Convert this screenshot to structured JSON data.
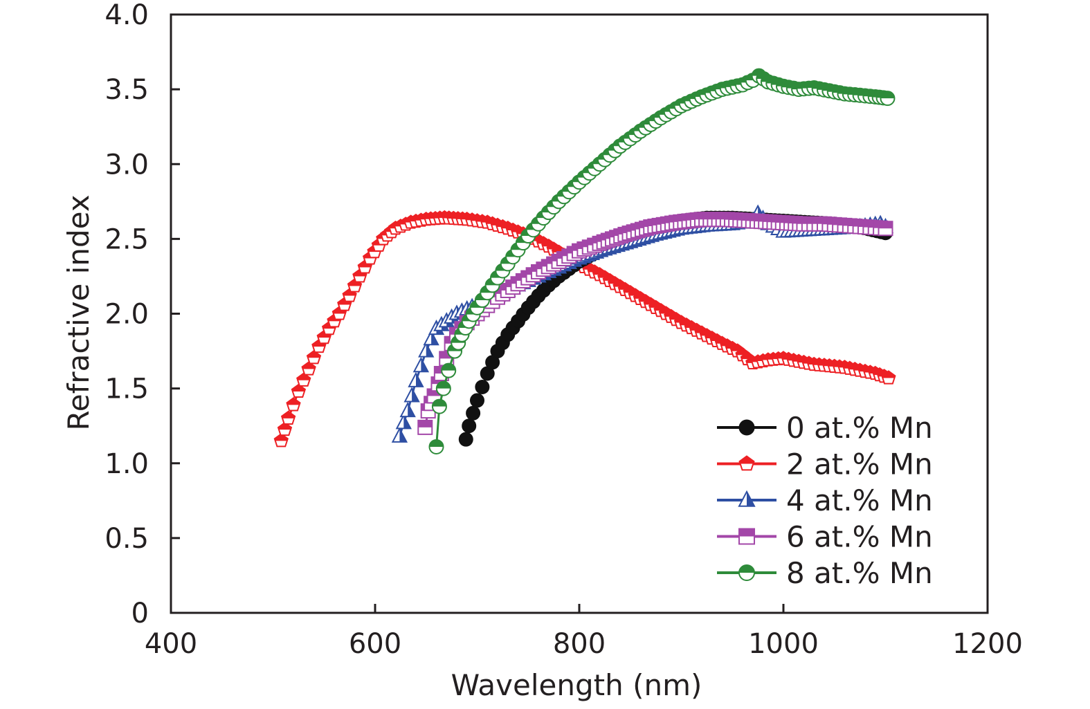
{
  "chart_data": {
    "type": "scatter",
    "title": "",
    "xlabel": "Wavelength (nm)",
    "ylabel": "Refractive index",
    "xlim": [
      400,
      1200
    ],
    "ylim": [
      0,
      4.0
    ],
    "xticks": [
      400,
      600,
      800,
      1000,
      1200
    ],
    "xtick_labels": [
      "400",
      "600",
      "800",
      "1000",
      "1200"
    ],
    "yticks": [
      0,
      0.5,
      1.0,
      1.5,
      2.0,
      2.5,
      3.0,
      3.5,
      4.0
    ],
    "ytick_labels": [
      "0",
      "0.5",
      "1.0",
      "1.5",
      "2.0",
      "2.5",
      "3.0",
      "3.5",
      "4.0"
    ],
    "grid": false,
    "legend_position": "bottom-right",
    "series": [
      {
        "name": "0 at.% Mn",
        "color": "#111111",
        "marker": "circle-filled",
        "x": [
          689,
          692,
          700,
          710,
          720,
          730,
          740,
          750,
          760,
          770,
          780,
          790,
          800,
          825,
          850,
          875,
          900,
          925,
          950,
          975,
          1000,
          1025,
          1050,
          1075,
          1100
        ],
        "y": [
          1.16,
          1.25,
          1.42,
          1.6,
          1.75,
          1.86,
          1.95,
          2.04,
          2.12,
          2.19,
          2.25,
          2.3,
          2.35,
          2.44,
          2.52,
          2.58,
          2.62,
          2.64,
          2.64,
          2.63,
          2.62,
          2.61,
          2.6,
          2.58,
          2.54
        ]
      },
      {
        "name": "2 at.% Mn",
        "color": "#ed2024",
        "marker": "pentagon-half",
        "x": [
          508,
          515,
          525,
          535,
          545,
          555,
          565,
          575,
          585,
          595,
          608,
          620,
          635,
          650,
          668,
          690,
          710,
          730,
          750,
          770,
          785,
          800,
          820,
          840,
          860,
          880,
          900,
          920,
          940,
          955,
          970,
          985,
          1000,
          1015,
          1030,
          1045,
          1060,
          1075,
          1090,
          1103
        ],
        "y": [
          1.15,
          1.3,
          1.48,
          1.63,
          1.78,
          1.9,
          2.0,
          2.12,
          2.25,
          2.37,
          2.5,
          2.57,
          2.61,
          2.63,
          2.64,
          2.63,
          2.61,
          2.57,
          2.52,
          2.45,
          2.39,
          2.33,
          2.26,
          2.18,
          2.1,
          2.02,
          1.94,
          1.87,
          1.8,
          1.75,
          1.67,
          1.69,
          1.7,
          1.68,
          1.66,
          1.65,
          1.64,
          1.62,
          1.6,
          1.57
        ]
      },
      {
        "name": "4 at.% Mn",
        "color": "#2e4fa3",
        "marker": "triangle-half",
        "x": [
          624,
          628,
          632,
          636,
          640,
          645,
          650,
          655,
          660,
          670,
          680,
          700,
          720,
          740,
          760,
          780,
          800,
          825,
          850,
          875,
          900,
          925,
          950,
          970,
          975,
          985,
          1000,
          1025,
          1050,
          1075,
          1095,
          1100
        ],
        "y": [
          1.18,
          1.27,
          1.35,
          1.45,
          1.55,
          1.65,
          1.75,
          1.83,
          1.9,
          1.95,
          2.0,
          2.06,
          2.12,
          2.19,
          2.25,
          2.31,
          2.37,
          2.43,
          2.48,
          2.53,
          2.57,
          2.59,
          2.6,
          2.62,
          2.67,
          2.6,
          2.55,
          2.56,
          2.57,
          2.58,
          2.6,
          2.58
        ]
      },
      {
        "name": "6 at.% Mn",
        "color": "#a347a8",
        "marker": "square-half",
        "x": [
          649,
          652,
          655,
          658,
          662,
          665,
          670,
          675,
          680,
          690,
          700,
          720,
          740,
          760,
          780,
          800,
          820,
          845,
          870,
          895,
          920,
          945,
          970,
          995,
          1020,
          1040,
          1060,
          1080,
          1100
        ],
        "y": [
          1.24,
          1.35,
          1.4,
          1.45,
          1.53,
          1.6,
          1.7,
          1.8,
          1.86,
          1.94,
          2.0,
          2.11,
          2.2,
          2.28,
          2.35,
          2.42,
          2.47,
          2.53,
          2.58,
          2.61,
          2.63,
          2.63,
          2.62,
          2.61,
          2.6,
          2.6,
          2.59,
          2.58,
          2.57
        ]
      },
      {
        "name": "8 at.% Mn",
        "color": "#2e8b3a",
        "marker": "circle-half",
        "x": [
          660,
          663,
          667,
          672,
          678,
          685,
          692,
          700,
          710,
          720,
          735,
          750,
          765,
          780,
          800,
          820,
          840,
          860,
          880,
          900,
          920,
          940,
          960,
          970,
          976,
          985,
          1000,
          1015,
          1030,
          1045,
          1060,
          1075,
          1090,
          1102
        ],
        "y": [
          1.11,
          1.38,
          1.5,
          1.62,
          1.75,
          1.86,
          1.95,
          2.04,
          2.14,
          2.24,
          2.38,
          2.52,
          2.64,
          2.75,
          2.88,
          3.0,
          3.12,
          3.22,
          3.31,
          3.39,
          3.45,
          3.5,
          3.53,
          3.56,
          3.59,
          3.55,
          3.52,
          3.5,
          3.51,
          3.49,
          3.47,
          3.46,
          3.45,
          3.44
        ]
      }
    ]
  }
}
